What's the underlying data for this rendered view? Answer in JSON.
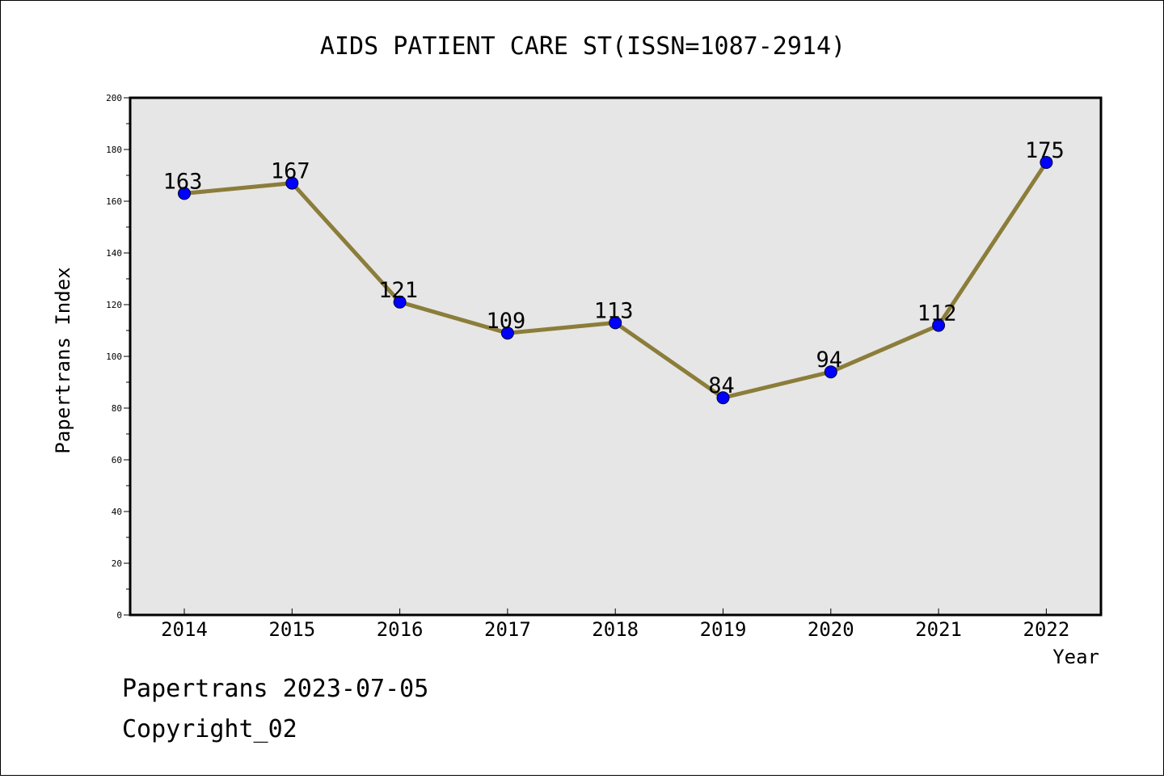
{
  "chart_data": {
    "type": "line",
    "title": "AIDS PATIENT CARE ST(ISSN=1087-2914)",
    "xlabel": "Year",
    "ylabel": "Papertrans Index",
    "categories": [
      "2014",
      "2015",
      "2016",
      "2017",
      "2018",
      "2019",
      "2020",
      "2021",
      "2022"
    ],
    "values": [
      163,
      167,
      121,
      109,
      113,
      84,
      94,
      112,
      175
    ],
    "ylim": [
      0,
      200
    ],
    "yticks": [
      0,
      20,
      40,
      60,
      80,
      100,
      120,
      140,
      160,
      180,
      200
    ],
    "grid": false,
    "line_color": "#8b7d3a",
    "marker_color": "#0000ff",
    "plot_background": "#e6e6e6"
  },
  "footer": {
    "line1": "Papertrans 2023-07-05",
    "line2": "Copyright_02"
  }
}
